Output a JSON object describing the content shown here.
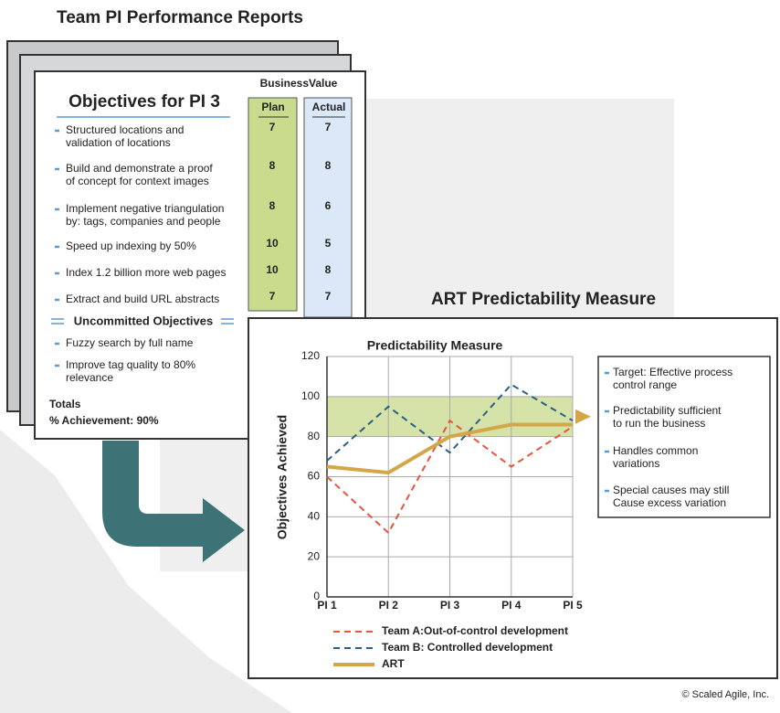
{
  "header": {
    "title": "Team PI Performance Reports"
  },
  "report": {
    "title": "Objectives for PI 3",
    "business_value": "BusinessValue",
    "plan_header": "Plan",
    "actual_header": "Actual",
    "objectives": [
      {
        "lines": [
          "Structured locations and",
          "validation of locations"
        ],
        "plan": 7,
        "actual": 7
      },
      {
        "lines": [
          "Build and demonstrate a proof",
          "of concept for context images"
        ],
        "plan": 8,
        "actual": 8
      },
      {
        "lines": [
          "Implement negative triangulation",
          "by: tags, companies and people"
        ],
        "plan": 8,
        "actual": 6
      },
      {
        "lines": [
          "Speed up indexing by 50%"
        ],
        "plan": 10,
        "actual": 5
      },
      {
        "lines": [
          "Index 1.2 billion more web pages"
        ],
        "plan": 10,
        "actual": 8
      },
      {
        "lines": [
          "Extract and build URL abstracts"
        ],
        "plan": 7,
        "actual": 7
      }
    ],
    "uncommitted_title": "Uncommitted Objectives",
    "uncommitted": [
      {
        "lines": [
          "Fuzzy search by full name"
        ]
      },
      {
        "lines": [
          "Improve tag quality to 80%",
          "relevance"
        ]
      }
    ],
    "totals": "Totals",
    "achievement": "% Achievement: 90%"
  },
  "section_title": "ART Predictability Measure",
  "chart_data": {
    "type": "line",
    "title": "Predictability Measure",
    "y_label": "Objectives Achieved",
    "categories": [
      "PI 1",
      "PI 2",
      "PI 3",
      "PI 4",
      "PI 5"
    ],
    "series": [
      {
        "name": "Team A:Out-of-control development",
        "color": "#e8553a",
        "dashed": true,
        "values": [
          60,
          32,
          88,
          65,
          85
        ]
      },
      {
        "name": "Team B: Controlled development",
        "color": "#2b5f86",
        "dashed": true,
        "values": [
          68,
          95,
          72,
          106,
          88
        ]
      },
      {
        "name": "ART",
        "color": "#d4a64a",
        "dashed": false,
        "values": [
          65,
          62,
          80,
          86,
          86
        ]
      }
    ],
    "ylim": [
      0,
      120
    ],
    "yticks": [
      0,
      20,
      40,
      60,
      80,
      100,
      120
    ],
    "grid": true,
    "target_range": [
      80,
      100
    ],
    "target_color": "#d6e3a8"
  },
  "notes": [
    {
      "lines": [
        "Target: Effective process",
        "control range"
      ]
    },
    {
      "lines": [
        "Predictability sufficient",
        "to run the business"
      ]
    },
    {
      "lines": [
        "Handles common",
        "variations"
      ]
    },
    {
      "lines": [
        "Special causes may still",
        "Cause excess variation"
      ]
    }
  ],
  "footer": "© Scaled Agile, Inc."
}
